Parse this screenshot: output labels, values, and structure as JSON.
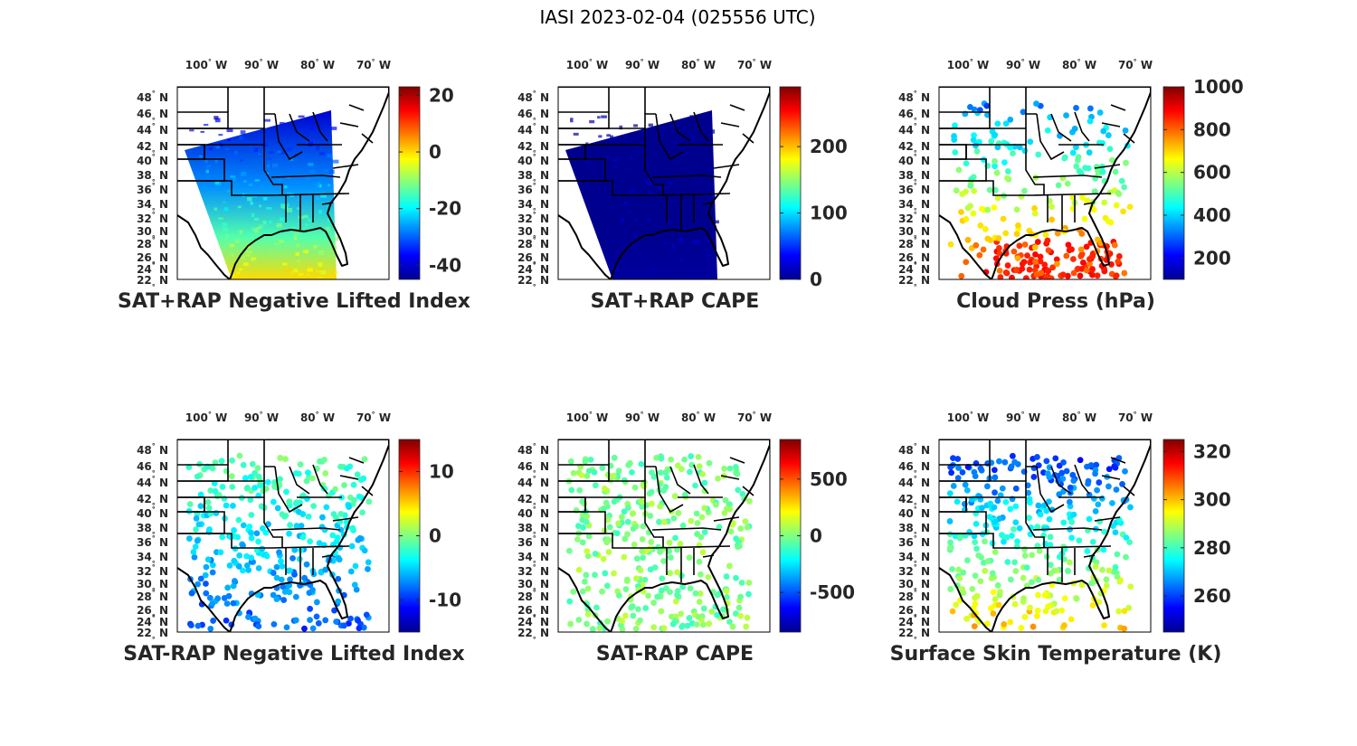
{
  "figure_title": "IASI 2023-02-04 (025556 UTC)",
  "colormap": [
    "#00008f",
    "#0000ff",
    "#0080ff",
    "#00ffff",
    "#80ff80",
    "#ffff00",
    "#ff8000",
    "#ff0000",
    "#800000"
  ],
  "chart_data": [
    {
      "type": "heatmap",
      "title": "SAT+RAP Negative Lifted Index",
      "lon_ticks": [
        "100",
        "90",
        "80",
        "70"
      ],
      "lon_unit": "W",
      "lat_ticks": [
        "48",
        "46",
        "44",
        "42",
        "40",
        "38",
        "36",
        "34",
        "32",
        "30",
        "28",
        "26",
        "24",
        "22"
      ],
      "lat_unit": "N",
      "colorbar": {
        "min": -45,
        "max": 23,
        "ticks": [
          "20",
          "0",
          "-20",
          "-40"
        ],
        "tick_values": [
          20,
          0,
          -20,
          -40
        ]
      },
      "field": {
        "style": "swath",
        "north_value": -40,
        "south_value": 0,
        "west_value": -14
      },
      "lon_range": [
        -105,
        -67
      ],
      "lat_range": [
        22,
        49.5
      ]
    },
    {
      "type": "heatmap",
      "title": "SAT+RAP CAPE",
      "lon_ticks": [
        "100",
        "90",
        "80",
        "70"
      ],
      "lon_unit": "W",
      "lat_ticks": [
        "48",
        "46",
        "44",
        "42",
        "40",
        "38",
        "36",
        "34",
        "32",
        "30",
        "28",
        "26",
        "24",
        "22"
      ],
      "lat_unit": "N",
      "colorbar": {
        "min": 0,
        "max": 290,
        "ticks": [
          "200",
          "100",
          "0"
        ],
        "tick_values": [
          200,
          100,
          0
        ]
      },
      "field": {
        "style": "swath",
        "north_value": 0,
        "south_value": 5,
        "west_value": 0
      },
      "lon_range": [
        -105,
        -67
      ],
      "lat_range": [
        22,
        49.5
      ]
    },
    {
      "type": "scatter",
      "title": "Cloud Press (hPa)",
      "lon_ticks": [
        "100",
        "90",
        "80",
        "70"
      ],
      "lon_unit": "W",
      "lat_ticks": [
        "48",
        "46",
        "44",
        "42",
        "40",
        "38",
        "36",
        "34",
        "32",
        "30",
        "28",
        "26",
        "24",
        "22"
      ],
      "lat_unit": "N",
      "colorbar": {
        "min": 100,
        "max": 1000,
        "ticks": [
          "1000",
          "800",
          "600",
          "400",
          "200"
        ],
        "tick_values": [
          1000,
          800,
          600,
          400,
          200
        ]
      },
      "field": {
        "style": "cloud",
        "north_value": 260,
        "south_value": 860
      },
      "lon_range": [
        -105,
        -67
      ],
      "lat_range": [
        22,
        49.5
      ]
    },
    {
      "type": "scatter",
      "title": "SAT-RAP Negative Lifted Index",
      "lon_ticks": [
        "100",
        "90",
        "80",
        "70"
      ],
      "lon_unit": "W",
      "lat_ticks": [
        "48",
        "46",
        "44",
        "42",
        "40",
        "38",
        "36",
        "34",
        "32",
        "30",
        "28",
        "26",
        "24",
        "22"
      ],
      "lat_unit": "N",
      "colorbar": {
        "min": -15,
        "max": 15,
        "ticks": [
          "10",
          "0",
          "-10"
        ],
        "tick_values": [
          10,
          0,
          -10
        ]
      },
      "field": {
        "style": "points",
        "north_value": 0,
        "south_value": -9
      },
      "lon_range": [
        -105,
        -67
      ],
      "lat_range": [
        22,
        49.5
      ]
    },
    {
      "type": "scatter",
      "title": "SAT-RAP CAPE",
      "lon_ticks": [
        "100",
        "90",
        "80",
        "70"
      ],
      "lon_unit": "W",
      "lat_ticks": [
        "48",
        "46",
        "44",
        "42",
        "40",
        "38",
        "36",
        "34",
        "32",
        "30",
        "28",
        "26",
        "24",
        "22"
      ],
      "lat_unit": "N",
      "colorbar": {
        "min": -850,
        "max": 850,
        "ticks": [
          "500",
          "0",
          "-500"
        ],
        "tick_values": [
          500,
          0,
          -500
        ]
      },
      "field": {
        "style": "points",
        "north_value": 0,
        "south_value": 0
      },
      "lon_range": [
        -105,
        -67
      ],
      "lat_range": [
        22,
        49.5
      ]
    },
    {
      "type": "scatter",
      "title": "Surface Skin Temperature (K)",
      "lon_ticks": [
        "100",
        "90",
        "80",
        "70"
      ],
      "lon_unit": "W",
      "lat_ticks": [
        "48",
        "46",
        "44",
        "42",
        "40",
        "38",
        "36",
        "34",
        "32",
        "30",
        "28",
        "26",
        "24",
        "22"
      ],
      "lat_unit": "N",
      "colorbar": {
        "min": 245,
        "max": 325,
        "ticks": [
          "320",
          "300",
          "280",
          "260"
        ],
        "tick_values": [
          320,
          300,
          280,
          260
        ]
      },
      "field": {
        "style": "points",
        "north_value": 255,
        "south_value": 300
      },
      "lon_range": [
        -105,
        -67
      ],
      "lat_range": [
        22,
        49.5
      ]
    }
  ]
}
